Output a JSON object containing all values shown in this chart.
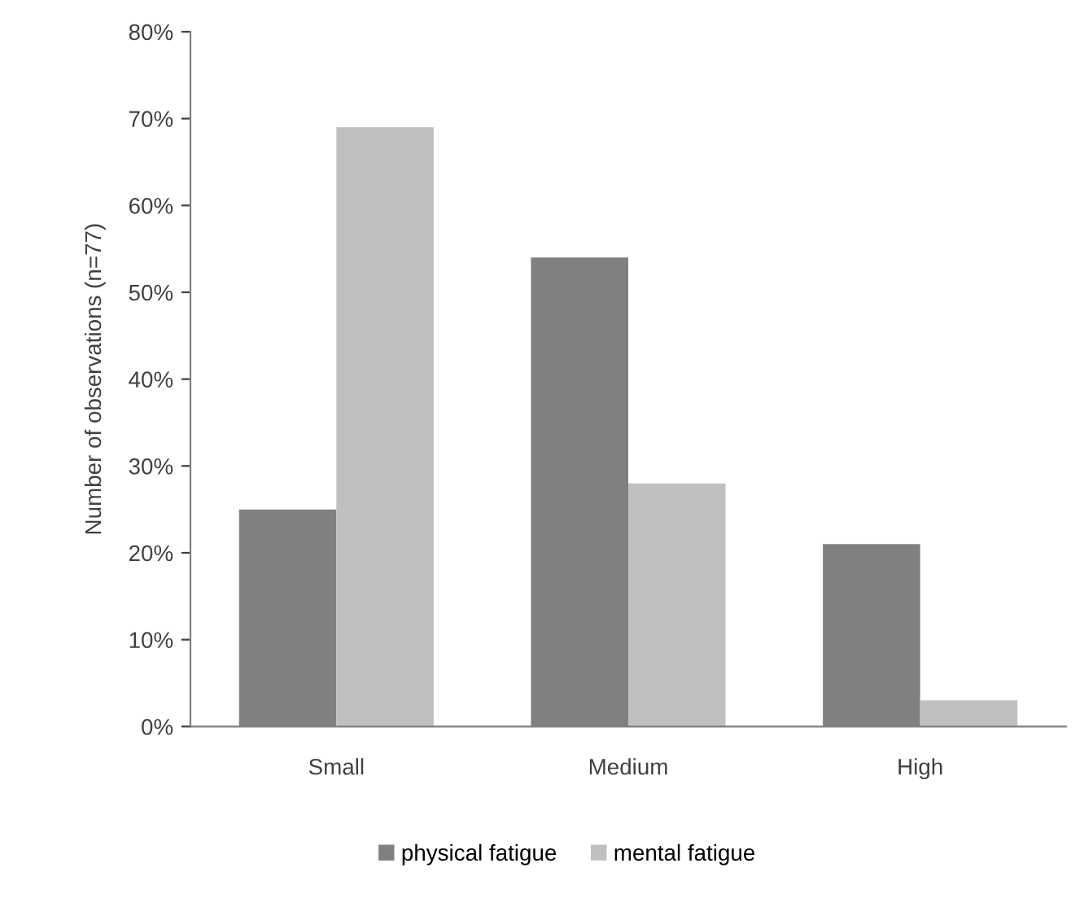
{
  "chart_data": {
    "type": "bar",
    "ylabel": "Number of observations (n=77)",
    "categories": [
      "Small",
      "Medium",
      "High"
    ],
    "series": [
      {
        "name": "physical fatigue",
        "color": "#808080",
        "values": [
          25,
          54,
          21
        ]
      },
      {
        "name": "mental fatigue",
        "color": "#c0c0c0",
        "values": [
          69,
          28,
          3
        ]
      }
    ],
    "ylim": [
      0,
      80
    ],
    "yticks": [
      {
        "value": 0,
        "label": "0%"
      },
      {
        "value": 10,
        "label": "10%"
      },
      {
        "value": 20,
        "label": "20%"
      },
      {
        "value": 30,
        "label": "30%"
      },
      {
        "value": 40,
        "label": "40%"
      },
      {
        "value": 50,
        "label": "50%"
      },
      {
        "value": 60,
        "label": "60%"
      },
      {
        "value": 70,
        "label": "70%"
      },
      {
        "value": 80,
        "label": "80%"
      }
    ],
    "grid": false,
    "legend": "bottom"
  }
}
